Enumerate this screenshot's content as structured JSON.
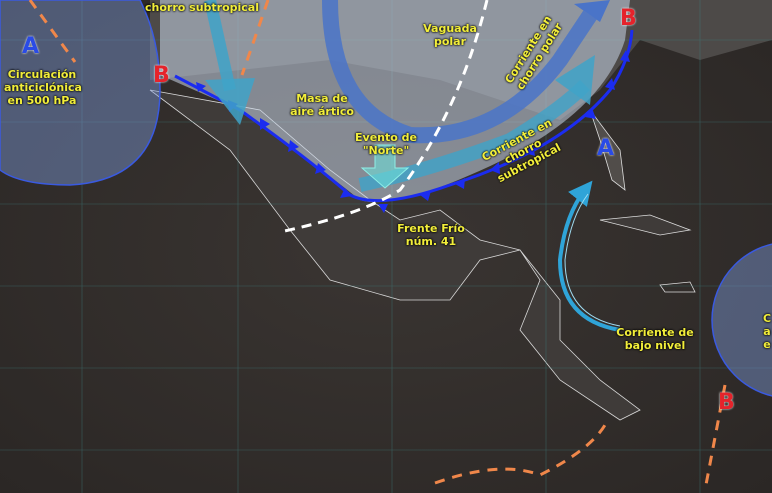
{
  "labels": {
    "top_cut": "chorro subtropical",
    "anticyclone": "Circulación anticiclónica en 500 hPa",
    "arctic_air": "Masa de aire ártico",
    "polar_trough": "Vaguada polar",
    "polar_jet": "Corriente en chorro polar",
    "subtropical_jet": "Corriente en chorro subtropical",
    "norte_event": "Evento de \"Norte\"",
    "cold_front": "Frente Frío núm. 41",
    "low_level_jet": "Corriente de bajo nivel",
    "right_partial": "C a e"
  },
  "pressure_centers": {
    "high": "A",
    "low": "B"
  },
  "colors": {
    "high": "#2a4be6",
    "low": "#e5232b",
    "label": "#f2ee3a",
    "front": "#1b2cf0",
    "jet_polar": "#4a74c8",
    "jet_subtropical": "#3fa3c8",
    "trough": "#ffffff",
    "ridge_axis": "#f0874a"
  }
}
